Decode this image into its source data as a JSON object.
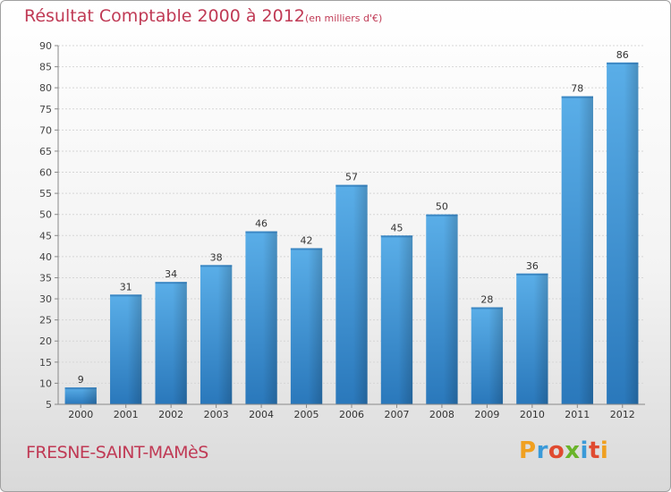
{
  "title": "Résultat Comptable 2000 à 2012",
  "subtitle": "(en milliers d'€)",
  "commune": "FRESNE-SAINT-MAMèS",
  "logo": {
    "letters": [
      "P",
      "r",
      "o",
      "x",
      "i",
      "t",
      "i"
    ],
    "colors": [
      "#f0a020",
      "#3a9ad9",
      "#e04a30",
      "#6ab42a",
      "#3a9ad9",
      "#e04a30",
      "#f0a020"
    ]
  },
  "chart_data": {
    "type": "bar",
    "categories": [
      "2000",
      "2001",
      "2002",
      "2003",
      "2004",
      "2005",
      "2006",
      "2007",
      "2008",
      "2009",
      "2010",
      "2011",
      "2012"
    ],
    "values": [
      9,
      31,
      34,
      38,
      46,
      42,
      57,
      45,
      50,
      28,
      36,
      78,
      86
    ],
    "ylim": [
      5,
      90
    ],
    "yticks": [
      5,
      10,
      15,
      20,
      25,
      30,
      35,
      40,
      45,
      50,
      55,
      60,
      65,
      70,
      75,
      80,
      85,
      90
    ],
    "grid": true,
    "bar_color_top": "#5aaee8",
    "bar_color_bottom": "#2a78bb"
  }
}
